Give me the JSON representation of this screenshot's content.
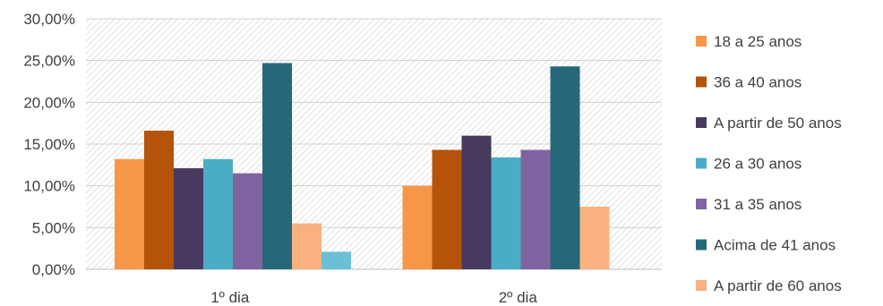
{
  "chart_data": {
    "type": "bar",
    "categories": [
      "1º dia",
      "2º dia"
    ],
    "series": [
      {
        "name": "18 a 25 anos",
        "color": "#f79646",
        "values": [
          13.2,
          10.0
        ]
      },
      {
        "name": "36 a 40 anos",
        "color": "#b5530a",
        "values": [
          16.6,
          14.3
        ]
      },
      {
        "name": "A partir de 50 anos",
        "color": "#473a5e",
        "values": [
          12.1,
          16.0
        ]
      },
      {
        "name": "26 a 30 anos",
        "color": "#4bacc6",
        "values": [
          13.2,
          13.4
        ]
      },
      {
        "name": "31 a 35 anos",
        "color": "#8064a2",
        "values": [
          11.5,
          14.3
        ]
      },
      {
        "name": "Acima de 41 anos",
        "color": "#26687a",
        "values": [
          24.7,
          24.3
        ]
      },
      {
        "name": "A partir de 60 anos",
        "color": "#f9b17f",
        "values": [
          5.5,
          7.5
        ]
      },
      {
        "name": "",
        "color": "#6cc0d6",
        "values": [
          2.1,
          null
        ]
      }
    ],
    "ylim": [
      0,
      30
    ],
    "yticks": [
      0,
      5,
      10,
      15,
      20,
      25,
      30
    ],
    "ytick_labels": [
      "0,00%",
      "5,00%",
      "10,00%",
      "15,00%",
      "20,00%",
      "25,00%",
      "30,00%"
    ],
    "grid": true,
    "plot_background": "hatched",
    "legend_position": "right"
  }
}
